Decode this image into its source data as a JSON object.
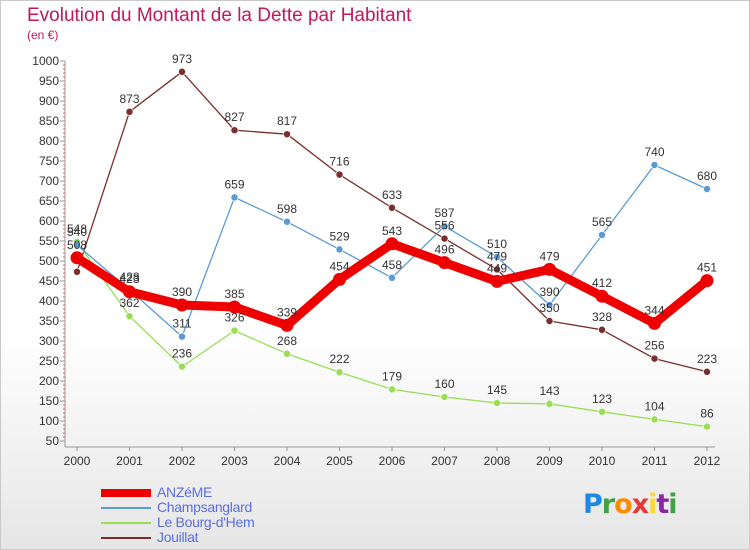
{
  "header": {
    "title": "Evolution du Montant de la Dette par Habitant",
    "unit": "(en €)"
  },
  "legend": {
    "items": [
      {
        "label": "ANZéME",
        "color": "#ee0000"
      },
      {
        "label": "Champsanglard",
        "color": "#5b9bd5"
      },
      {
        "label": "Le Bourg-d'Hem",
        "color": "#99dd55"
      },
      {
        "label": "Jouillat",
        "color": "#7a2e2e"
      }
    ]
  },
  "logo": {
    "letters": [
      "P",
      "r",
      "o",
      "x",
      "i",
      "t",
      "i"
    ],
    "colors": [
      "#1e88e5",
      "#43a047",
      "#fb8c00",
      "#e53935",
      "#fdd835",
      "#8e24aa",
      "#43a047"
    ]
  },
  "chart_data": {
    "type": "line",
    "title": "Evolution du Montant de la Dette par Habitant",
    "ylabel": "(en €)",
    "xlabel": "",
    "ylim": [
      50,
      1000
    ],
    "grid": false,
    "legend_position": "bottom-left",
    "categories": [
      "2000",
      "2001",
      "2002",
      "2003",
      "2004",
      "2005",
      "2006",
      "2007",
      "2008",
      "2009",
      "2010",
      "2011",
      "2012"
    ],
    "yticks": [
      50,
      100,
      150,
      200,
      250,
      300,
      350,
      400,
      450,
      500,
      550,
      600,
      650,
      700,
      750,
      800,
      850,
      900,
      950,
      1000
    ],
    "series": [
      {
        "name": "Jouillat",
        "color": "#7a2e2e",
        "values": [
          473,
          873,
          973,
          827,
          817,
          716,
          633,
          556,
          479,
          350,
          328,
          256,
          223
        ],
        "labels": [
          "",
          "873",
          "973",
          "827",
          "817",
          "716",
          "633",
          "556",
          "479",
          "350",
          "328",
          "256",
          "223"
        ]
      },
      {
        "name": "Le Bourg-d'Hem",
        "color": "#99dd55",
        "values": [
          548,
          362,
          236,
          326,
          268,
          222,
          179,
          160,
          145,
          143,
          123,
          104,
          86
        ],
        "labels": [
          "548",
          "362",
          "236",
          "326",
          "268",
          "222",
          "179",
          "160",
          "145",
          "143",
          "123",
          "104",
          "86"
        ]
      },
      {
        "name": "Champsanglard",
        "color": "#5b9bd5",
        "values": [
          540,
          428,
          311,
          659,
          598,
          529,
          458,
          587,
          510,
          390,
          565,
          740,
          680
        ],
        "labels": [
          "540",
          "428",
          "311",
          "659",
          "598",
          "529",
          "458",
          "587",
          "510",
          "390",
          "565",
          "740",
          "680"
        ]
      },
      {
        "name": "ANZéME",
        "color": "#ee0000",
        "values": [
          508,
          423,
          390,
          385,
          339,
          454,
          543,
          496,
          449,
          479,
          412,
          344,
          451
        ],
        "labels": [
          "508",
          "423",
          "390",
          "385",
          "339",
          "454",
          "543",
          "496",
          "449",
          "479",
          "412",
          "344",
          "451"
        ]
      }
    ]
  }
}
